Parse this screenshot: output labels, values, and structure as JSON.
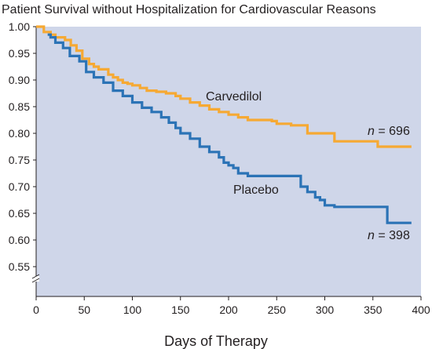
{
  "chart_data": {
    "type": "line",
    "title": "Patient Survival without Hospitalization for Cardiovascular Reasons",
    "xlabel": "Days of Therapy",
    "ylabel": "",
    "xlim": [
      0,
      400
    ],
    "ylim": [
      0.55,
      1.0
    ],
    "y_axis_break": true,
    "grid": false,
    "x_ticks": [
      0,
      50,
      100,
      150,
      200,
      250,
      300,
      350,
      400
    ],
    "y_ticks": [
      "0.55",
      "0.60",
      "0.65",
      "0.70",
      "0.75",
      "0.80",
      "0.85",
      "0.90",
      "0.95",
      "1.00"
    ],
    "background_color": "#cfd6e9",
    "series": [
      {
        "name": "Carvedilol",
        "n_label": "n = 696",
        "color": "#f6a933",
        "x": [
          0,
          8,
          15,
          20,
          30,
          36,
          42,
          48,
          55,
          60,
          65,
          75,
          80,
          85,
          90,
          95,
          100,
          108,
          115,
          125,
          135,
          145,
          150,
          160,
          170,
          180,
          190,
          200,
          210,
          220,
          245,
          250,
          265,
          282,
          300,
          310,
          330,
          350,
          355,
          370,
          390
        ],
        "y": [
          1.0,
          0.99,
          0.985,
          0.98,
          0.975,
          0.965,
          0.955,
          0.94,
          0.93,
          0.925,
          0.92,
          0.91,
          0.905,
          0.9,
          0.895,
          0.893,
          0.89,
          0.885,
          0.88,
          0.878,
          0.875,
          0.87,
          0.865,
          0.858,
          0.852,
          0.845,
          0.84,
          0.835,
          0.83,
          0.825,
          0.823,
          0.818,
          0.815,
          0.8,
          0.8,
          0.785,
          0.785,
          0.785,
          0.775,
          0.775,
          0.775
        ]
      },
      {
        "name": "Placebo",
        "n_label": "n = 398",
        "color": "#2b73b6",
        "x": [
          12,
          15,
          20,
          28,
          35,
          45,
          52,
          60,
          70,
          80,
          90,
          100,
          110,
          120,
          130,
          138,
          145,
          150,
          160,
          170,
          180,
          190,
          195,
          200,
          205,
          210,
          220,
          240,
          260,
          275,
          282,
          290,
          295,
          300,
          310,
          340,
          365,
          370,
          390
        ],
        "y": [
          0.985,
          0.98,
          0.97,
          0.96,
          0.945,
          0.935,
          0.915,
          0.905,
          0.895,
          0.88,
          0.87,
          0.858,
          0.848,
          0.84,
          0.83,
          0.82,
          0.81,
          0.8,
          0.79,
          0.775,
          0.765,
          0.755,
          0.745,
          0.74,
          0.735,
          0.725,
          0.72,
          0.72,
          0.72,
          0.7,
          0.69,
          0.68,
          0.675,
          0.665,
          0.662,
          0.662,
          0.632,
          0.632,
          0.632
        ]
      }
    ]
  }
}
